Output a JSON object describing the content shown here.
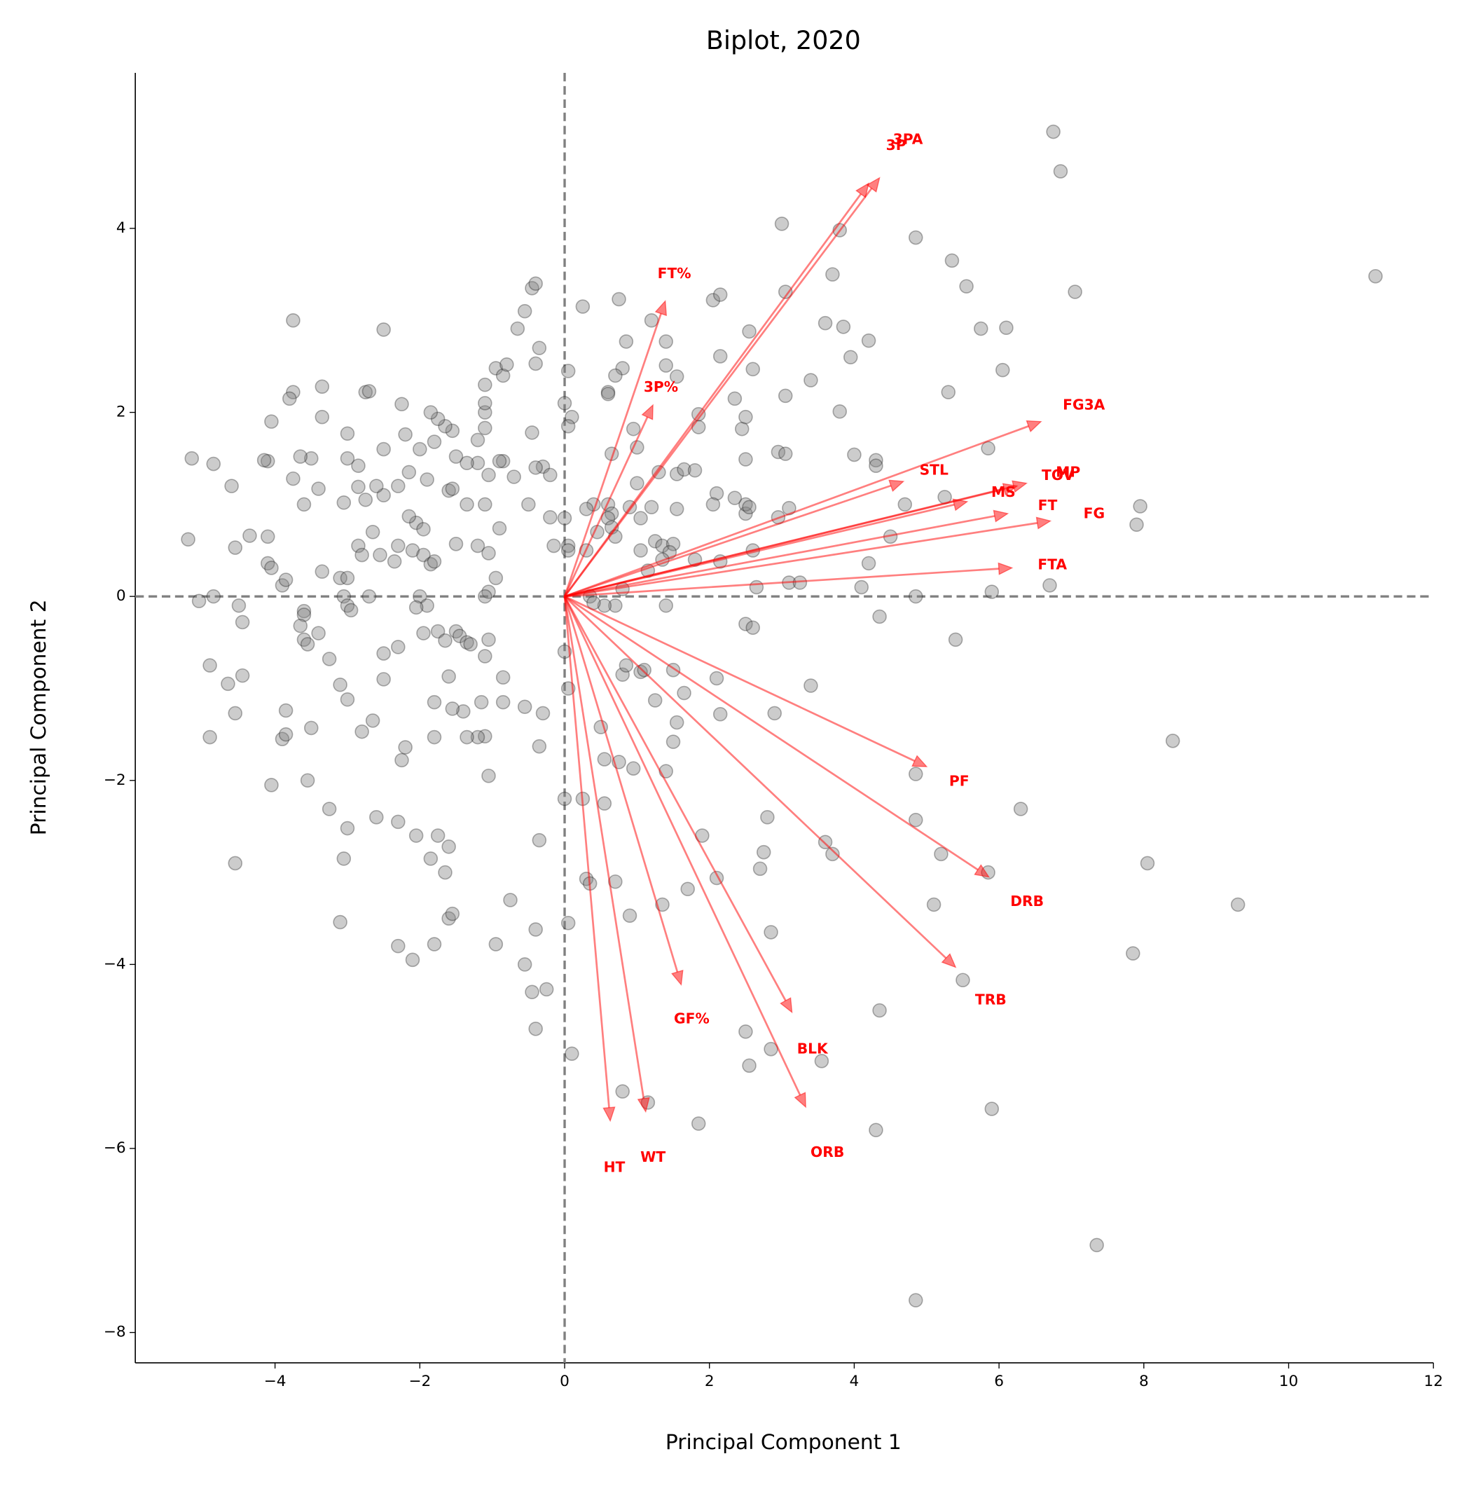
{
  "chart_data": {
    "type": "scatter",
    "title": "Biplot, 2020",
    "x_label": "Principal Component 1",
    "y_label": "Principal Component 2",
    "xlim": [
      -5.93,
      12
    ],
    "ylim": [
      -8.33,
      5.69
    ],
    "xticks": [
      {
        "value": -4,
        "label": "−4"
      },
      {
        "value": -2,
        "label": "−2"
      },
      0,
      2,
      4,
      6,
      8,
      10,
      12
    ],
    "yticks": [
      {
        "value": -8,
        "label": "−8"
      },
      {
        "value": -6,
        "label": "−6"
      },
      {
        "value": -4,
        "label": "−4"
      },
      {
        "value": -2,
        "label": "−2"
      },
      0,
      2,
      4
    ],
    "color": "#808080",
    "vector_color": "red",
    "x": [
      6.75,
      6.85,
      11.2,
      3.0,
      3.8,
      4.85,
      5.35,
      5.55,
      7.05,
      3.05,
      3.7,
      3.6,
      3.85,
      4.2,
      5.75,
      6.1,
      3.95,
      6.05,
      2.55,
      2.6,
      3.4,
      5.3,
      3.05,
      3.8,
      5.85,
      4.0,
      4.3,
      4.3,
      2.95,
      3.05,
      2.5,
      2.15,
      2.05,
      2.15,
      1.85,
      1.85,
      2.45,
      2.5,
      2.35,
      7.95,
      7.9,
      6.7,
      4.7,
      5.25,
      4.5,
      3.1,
      2.95,
      2.5,
      2.5,
      2.55,
      2.35,
      2.1,
      2.05,
      2.15,
      2.6,
      2.65,
      3.1,
      3.25,
      4.1,
      4.2,
      4.85,
      5.9,
      4.35,
      5.4,
      2.5,
      2.6,
      3.4,
      2.9,
      2.15,
      2.1,
      1.65,
      1.5,
      1.55,
      1.5,
      1.4,
      0.95,
      0.75,
      0.5,
      0.8,
      1.05,
      1.1,
      0.85,
      1.25,
      0.55,
      0.55,
      0.25,
      0.0,
      0.3,
      0.35,
      0.7,
      0.9,
      1.35,
      1.7,
      2.1,
      1.9,
      2.8,
      2.75,
      2.7,
      3.6,
      3.7,
      2.85,
      4.85,
      4.85,
      5.2,
      5.85,
      6.3,
      5.1,
      5.5,
      4.35,
      8.4,
      8.05,
      9.3,
      7.85,
      5.9,
      2.5,
      2.85,
      3.55,
      2.55,
      4.3,
      1.85,
      0.8,
      1.15,
      0.1,
      7.35,
      4.85,
      -0.4,
      -0.4,
      -0.45,
      -0.55,
      -0.25,
      0.05,
      -0.35,
      -0.75,
      -0.95,
      -0.35,
      -0.3,
      -0.55,
      -0.85,
      -0.85,
      -1.05,
      -1.1,
      -1.15,
      -1.1,
      -1.2,
      -1.35,
      -1.4,
      -1.55,
      -1.6,
      -1.8,
      -1.8,
      -1.85,
      -1.75,
      -1.6,
      -1.65,
      -1.6,
      -1.55,
      -1.8,
      -2.1,
      -2.3,
      -2.05,
      -2.3,
      -2.25,
      -2.2,
      -2.6,
      -2.8,
      -2.65,
      -2.5,
      -2.5,
      -2.3,
      -3.0,
      -3.1,
      -3.25,
      -3.0,
      -3.05,
      -3.25,
      -3.1,
      -3.5,
      -3.55,
      -3.9,
      -3.85,
      -3.85,
      -4.05,
      -4.55,
      -4.55,
      -4.45,
      -4.65,
      -4.9,
      -4.9,
      -4.5,
      -4.45,
      -4.85,
      -5.05,
      -5.2,
      -4.55,
      -4.35,
      -4.1,
      -4.1,
      -4.05,
      -3.9,
      -3.85,
      -3.6,
      -3.6,
      -3.65,
      -3.6,
      -3.55,
      -3.4,
      -3.35,
      -3.1,
      -3.05,
      -3.0,
      -2.95,
      -2.7,
      -3.0,
      -2.85,
      -2.8,
      -2.65,
      -2.55,
      -2.3,
      -2.35,
      -2.1,
      -1.95,
      -1.85,
      -1.8,
      -2.0,
      -1.9,
      -2.05,
      -1.95,
      -1.75,
      -1.65,
      -1.5,
      -1.45,
      -1.35,
      -1.3,
      -1.05,
      -0.95,
      -1.05,
      -1.1,
      -1.2,
      -1.05,
      -0.9,
      -1.5,
      -1.1,
      -1.35,
      -1.6,
      -1.55,
      -1.5,
      -1.2,
      -1.2,
      -1.1,
      -1.1,
      -1.1,
      -1.1,
      -0.95,
      -0.85,
      -0.8,
      -0.65,
      -0.55,
      -0.45,
      -0.4,
      -0.35,
      -0.4,
      -0.45,
      -0.3,
      -0.2,
      -0.85,
      -0.7,
      -0.5,
      -0.2,
      -0.15,
      0.05,
      0.0,
      -0.4,
      -1.05,
      -0.9,
      -1.35,
      -1.55,
      -1.65,
      -1.75,
      -1.85,
      -1.8,
      -1.9,
      -2.0,
      -2.15,
      -2.05,
      -1.95,
      -2.15,
      -2.2,
      -2.25,
      -2.5,
      -2.3,
      -2.5,
      -2.6,
      -2.75,
      -2.75,
      -2.7,
      -2.85,
      -2.85,
      -3.0,
      -3.0,
      -3.05,
      -3.4,
      -3.35,
      -3.35,
      -3.5,
      -3.65,
      -3.6,
      -3.75,
      -3.75,
      -3.8,
      -3.75,
      -4.05,
      -4.1,
      -4.15,
      -4.6,
      -4.85,
      -5.15,
      -2.5,
      0.25,
      0.05,
      0.0,
      0.1,
      0.05,
      0.4,
      0.6,
      0.65,
      0.6,
      0.65,
      0.7,
      0.3,
      0.45,
      0.05,
      0.3,
      0.65,
      0.95,
      1.0,
      1.3,
      1.0,
      0.9,
      1.55,
      1.65,
      1.2,
      1.05,
      1.55,
      1.05,
      1.25,
      1.35,
      1.5,
      1.45,
      1.15,
      0.8,
      0.35,
      0.7,
      0.55,
      0.4,
      1.4,
      0.0,
      0.05,
      0.75,
      0.85,
      0.8,
      0.6,
      0.7,
      0.6,
      1.2,
      1.4,
      1.4,
      1.55,
      1.8,
      1.35,
      1.8
    ],
    "values": [
      5.05,
      4.62,
      3.48,
      4.05,
      3.98,
      3.9,
      3.65,
      3.37,
      3.31,
      3.31,
      3.5,
      2.97,
      2.93,
      2.78,
      2.91,
      2.92,
      2.6,
      2.46,
      2.88,
      2.47,
      2.35,
      2.22,
      2.18,
      2.01,
      1.61,
      1.54,
      1.48,
      1.42,
      1.57,
      1.55,
      1.49,
      2.61,
      3.22,
      3.28,
      1.84,
      1.98,
      1.82,
      1.95,
      2.15,
      0.98,
      0.78,
      0.12,
      1.0,
      1.08,
      0.65,
      0.96,
      0.86,
      0.9,
      1.0,
      0.97,
      1.07,
      1.12,
      1.0,
      0.38,
      0.5,
      0.1,
      0.15,
      0.15,
      0.1,
      0.36,
      0.0,
      0.05,
      -0.22,
      -0.47,
      -0.3,
      -0.34,
      -0.97,
      -1.27,
      -1.28,
      -0.89,
      -1.05,
      -0.8,
      -1.37,
      -1.58,
      -1.9,
      -1.87,
      -1.8,
      -1.42,
      -0.85,
      -0.82,
      -0.8,
      -0.75,
      -1.13,
      -1.77,
      -2.25,
      -2.2,
      -2.2,
      -3.07,
      -3.12,
      -3.1,
      -3.47,
      -3.35,
      -3.18,
      -3.06,
      -2.6,
      -2.4,
      -2.78,
      -2.96,
      -2.67,
      -2.8,
      -3.65,
      -1.93,
      -2.43,
      -2.8,
      -3.0,
      -2.31,
      -3.35,
      -4.17,
      -4.5,
      -1.57,
      -2.9,
      -3.35,
      -3.88,
      -5.57,
      -4.73,
      -4.92,
      -5.05,
      -5.1,
      -5.8,
      -5.73,
      -5.38,
      -5.5,
      -4.97,
      -7.05,
      -7.65,
      -4.7,
      -3.62,
      -4.3,
      -4.0,
      -4.27,
      -3.55,
      -2.65,
      -3.3,
      -3.78,
      -1.63,
      -1.27,
      -1.2,
      -1.15,
      -0.88,
      -1.95,
      -1.52,
      -1.15,
      -0.65,
      -1.53,
      -1.53,
      -1.25,
      -1.22,
      -0.87,
      -1.15,
      -1.53,
      -2.85,
      -2.6,
      -2.72,
      -3.0,
      -3.5,
      -3.45,
      -3.78,
      -3.95,
      -3.8,
      -2.6,
      -2.45,
      -1.78,
      -1.64,
      -2.4,
      -1.47,
      -1.35,
      -0.9,
      -0.62,
      -0.55,
      -1.12,
      -0.96,
      -0.68,
      -2.52,
      -2.85,
      -2.31,
      -3.54,
      -1.43,
      -2.0,
      -1.55,
      -1.5,
      -1.24,
      -2.05,
      -2.9,
      -1.27,
      -0.86,
      -0.95,
      -0.75,
      -1.53,
      -0.1,
      -0.28,
      0.0,
      -0.05,
      0.62,
      0.53,
      0.66,
      0.65,
      0.36,
      0.31,
      0.12,
      0.18,
      -0.16,
      -0.2,
      -0.32,
      -0.47,
      -0.52,
      -0.4,
      0.27,
      0.2,
      0.0,
      -0.1,
      -0.15,
      0.0,
      0.2,
      0.55,
      0.45,
      0.7,
      0.45,
      0.55,
      0.38,
      0.5,
      0.45,
      0.35,
      0.38,
      0.0,
      -0.1,
      -0.12,
      -0.4,
      -0.38,
      -0.48,
      -0.38,
      -0.43,
      -0.5,
      -0.52,
      -0.47,
      0.2,
      0.05,
      0.0,
      0.55,
      0.47,
      0.74,
      0.57,
      1.0,
      1.0,
      1.15,
      1.17,
      1.52,
      1.45,
      1.7,
      1.83,
      2.0,
      2.1,
      2.3,
      2.48,
      2.4,
      2.52,
      2.91,
      3.1,
      3.35,
      3.4,
      2.7,
      2.53,
      1.78,
      1.41,
      1.32,
      1.47,
      1.3,
      1.0,
      0.86,
      0.55,
      0.55,
      0.85,
      1.4,
      1.32,
      1.47,
      1.45,
      1.8,
      1.85,
      1.93,
      2.0,
      1.68,
      1.27,
      1.6,
      1.35,
      0.8,
      0.73,
      0.87,
      1.76,
      2.09,
      1.6,
      1.2,
      1.1,
      1.2,
      1.05,
      2.22,
      2.23,
      1.19,
      1.42,
      1.5,
      1.77,
      1.02,
      1.17,
      1.95,
      2.28,
      1.5,
      1.52,
      1.0,
      1.28,
      2.22,
      2.15,
      3.0,
      1.9,
      1.47,
      1.48,
      1.2,
      1.44,
      1.5,
      2.9,
      3.15,
      2.45,
      2.1,
      1.95,
      1.85,
      1.0,
      1.0,
      0.9,
      0.85,
      0.75,
      0.65,
      0.95,
      0.7,
      0.5,
      0.5,
      1.55,
      1.82,
      1.62,
      1.35,
      1.23,
      0.97,
      1.33,
      1.38,
      0.97,
      0.85,
      0.95,
      0.5,
      0.6,
      0.55,
      0.57,
      0.48,
      0.28,
      0.08,
      0.0,
      -0.1,
      -0.1,
      -0.07,
      -0.1,
      -0.6,
      -1.0,
      3.23,
      2.77,
      2.48,
      2.22,
      2.4,
      2.2,
      3.0,
      2.77,
      2.51,
      2.39,
      1.37,
      0.4,
      0.4
    ],
    "vectors": [
      {
        "label": "3PA",
        "x": 4.35,
        "y": 4.55
      },
      {
        "label": "3P",
        "x": 4.2,
        "y": 4.49
      },
      {
        "label": "FT%",
        "x": 1.39,
        "y": 3.21
      },
      {
        "label": "3P%",
        "x": 1.22,
        "y": 2.08
      },
      {
        "label": "FG3A",
        "x": 6.58,
        "y": 1.9
      },
      {
        "label": "STL",
        "x": 4.68,
        "y": 1.25
      },
      {
        "label": "MP",
        "x": 6.38,
        "y": 1.23
      },
      {
        "label": "TOV",
        "x": 6.25,
        "y": 1.2
      },
      {
        "label": "MS",
        "x": 5.56,
        "y": 1.03
      },
      {
        "label": "FT",
        "x": 6.12,
        "y": 0.9
      },
      {
        "label": "FG",
        "x": 6.71,
        "y": 0.82
      },
      {
        "label": "FTA",
        "x": 6.18,
        "y": 0.31
      },
      {
        "label": "PF",
        "x": 5.0,
        "y": -1.85
      },
      {
        "label": "DRB",
        "x": 5.86,
        "y": -3.05
      },
      {
        "label": "TRB",
        "x": 5.4,
        "y": -4.03
      },
      {
        "label": "BLK",
        "x": 3.14,
        "y": -4.52
      },
      {
        "label": "GF%",
        "x": 1.61,
        "y": -4.22
      },
      {
        "label": "ORB",
        "x": 3.33,
        "y": -5.55
      },
      {
        "label": "WT",
        "x": 1.12,
        "y": -5.6
      },
      {
        "label": "HT",
        "x": 0.63,
        "y": -5.7
      }
    ]
  }
}
